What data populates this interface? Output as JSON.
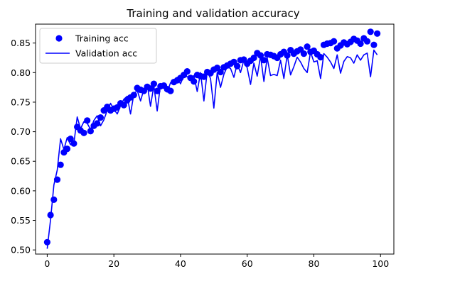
{
  "chart_data": {
    "type": "line",
    "title": "Training and validation accuracy",
    "xlabel": "",
    "ylabel": "",
    "xlim": [
      -3.5,
      104
    ],
    "ylim": [
      0.493,
      0.882
    ],
    "xticks": [
      0,
      20,
      40,
      60,
      80,
      100
    ],
    "xtick_labels": [
      "0",
      "20",
      "40",
      "60",
      "80",
      "100"
    ],
    "yticks": [
      0.5,
      0.55,
      0.6,
      0.65,
      0.7,
      0.75,
      0.8,
      0.85
    ],
    "ytick_labels": [
      "0.50",
      "0.55",
      "0.60",
      "0.65",
      "0.70",
      "0.75",
      "0.80",
      "0.85"
    ],
    "grid": false,
    "legend_position": "upper left",
    "x": [
      0,
      1,
      2,
      3,
      4,
      5,
      6,
      7,
      8,
      9,
      10,
      11,
      12,
      13,
      14,
      15,
      16,
      17,
      18,
      19,
      20,
      21,
      22,
      23,
      24,
      25,
      26,
      27,
      28,
      29,
      30,
      31,
      32,
      33,
      34,
      35,
      36,
      37,
      38,
      39,
      40,
      41,
      42,
      43,
      44,
      45,
      46,
      47,
      48,
      49,
      50,
      51,
      52,
      53,
      54,
      55,
      56,
      57,
      58,
      59,
      60,
      61,
      62,
      63,
      64,
      65,
      66,
      67,
      68,
      69,
      70,
      71,
      72,
      73,
      74,
      75,
      76,
      77,
      78,
      79,
      80,
      81,
      82,
      83,
      84,
      85,
      86,
      87,
      88,
      89,
      90,
      91,
      92,
      93,
      94,
      95,
      96,
      97,
      98,
      99
    ],
    "series": [
      {
        "name": "Training acc",
        "style": "markers",
        "color": "#0000ff",
        "values": [
          0.513,
          0.559,
          0.585,
          0.619,
          0.644,
          0.665,
          0.671,
          0.688,
          0.68,
          0.708,
          0.702,
          0.698,
          0.719,
          0.701,
          0.71,
          0.714,
          0.724,
          0.736,
          0.742,
          0.736,
          0.739,
          0.741,
          0.748,
          0.745,
          0.753,
          0.758,
          0.762,
          0.774,
          0.771,
          0.769,
          0.776,
          0.773,
          0.781,
          0.769,
          0.777,
          0.778,
          0.772,
          0.769,
          0.784,
          0.787,
          0.791,
          0.796,
          0.802,
          0.791,
          0.785,
          0.796,
          0.794,
          0.793,
          0.801,
          0.799,
          0.805,
          0.808,
          0.801,
          0.809,
          0.812,
          0.815,
          0.818,
          0.811,
          0.821,
          0.822,
          0.815,
          0.82,
          0.825,
          0.833,
          0.829,
          0.821,
          0.831,
          0.83,
          0.828,
          0.825,
          0.831,
          0.835,
          0.829,
          0.838,
          0.832,
          0.836,
          0.839,
          0.832,
          0.844,
          0.835,
          0.837,
          0.831,
          0.826,
          0.847,
          0.849,
          0.85,
          0.853,
          0.841,
          0.846,
          0.851,
          0.848,
          0.852,
          0.857,
          0.854,
          0.849,
          0.858,
          0.853,
          0.869,
          0.847,
          0.866
        ]
      },
      {
        "name": "Validation acc",
        "style": "line",
        "color": "#0000ff",
        "values": [
          0.502,
          0.551,
          0.61,
          0.635,
          0.688,
          0.67,
          0.69,
          0.678,
          0.68,
          0.725,
          0.705,
          0.717,
          0.714,
          0.704,
          0.719,
          0.727,
          0.71,
          0.72,
          0.736,
          0.748,
          0.738,
          0.73,
          0.744,
          0.755,
          0.76,
          0.73,
          0.764,
          0.77,
          0.752,
          0.772,
          0.78,
          0.743,
          0.778,
          0.735,
          0.78,
          0.78,
          0.767,
          0.783,
          0.78,
          0.792,
          0.781,
          0.795,
          0.793,
          0.79,
          0.795,
          0.768,
          0.8,
          0.752,
          0.802,
          0.79,
          0.74,
          0.8,
          0.775,
          0.797,
          0.81,
          0.807,
          0.792,
          0.815,
          0.8,
          0.821,
          0.808,
          0.78,
          0.816,
          0.794,
          0.828,
          0.785,
          0.825,
          0.795,
          0.797,
          0.795,
          0.821,
          0.79,
          0.83,
          0.796,
          0.81,
          0.826,
          0.818,
          0.807,
          0.8,
          0.835,
          0.818,
          0.82,
          0.79,
          0.832,
          0.826,
          0.818,
          0.807,
          0.83,
          0.799,
          0.819,
          0.827,
          0.825,
          0.816,
          0.83,
          0.821,
          0.83,
          0.833,
          0.793,
          0.838,
          0.83
        ]
      }
    ]
  }
}
